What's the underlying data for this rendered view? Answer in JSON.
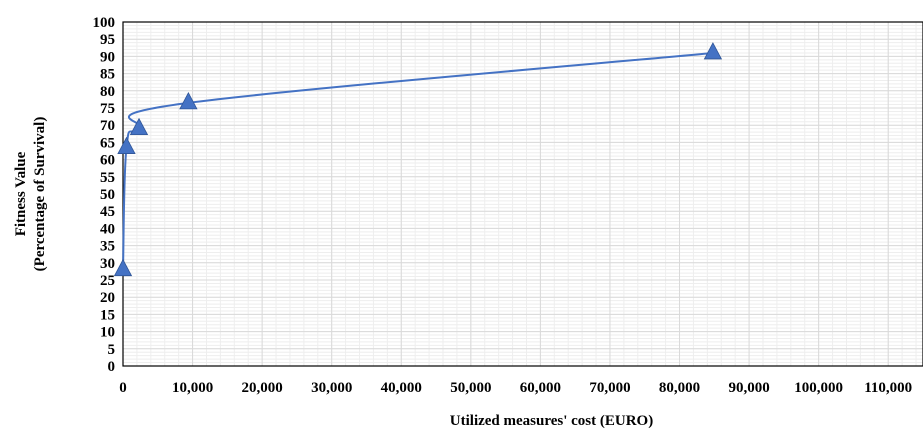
{
  "chart_data": {
    "type": "scatter",
    "title": "",
    "xlabel": "Utilized measures' cost (EURO)",
    "ylabel_line1": "Fitness Value",
    "ylabel_line2": "(Percentage of Survival)",
    "xlim": [
      0,
      115000
    ],
    "ylim": [
      0,
      100
    ],
    "x_ticks": [
      0,
      10000,
      20000,
      30000,
      40000,
      50000,
      60000,
      70000,
      80000,
      90000,
      100000,
      110000
    ],
    "x_tick_labels": [
      "0",
      "10,000",
      "20,000",
      "30,000",
      "40,000",
      "50,000",
      "60,000",
      "70,000",
      "80,000",
      "90,000",
      "100,000",
      "110,000"
    ],
    "y_ticks": [
      0,
      5,
      10,
      15,
      20,
      25,
      30,
      35,
      40,
      45,
      50,
      55,
      60,
      65,
      70,
      75,
      80,
      85,
      90,
      95,
      100
    ],
    "y_tick_labels": [
      "0",
      "5",
      "10",
      "15",
      "20",
      "25",
      "30",
      "35",
      "40",
      "45",
      "50",
      "55",
      "60",
      "65",
      "70",
      "75",
      "80",
      "85",
      "90",
      "95",
      "100"
    ],
    "grid": true,
    "legend": "none",
    "marker": "triangle",
    "line_style": "smooth",
    "color": "#4472c4",
    "series": [
      {
        "x": [
          0,
          500,
          2300,
          9400,
          84800
        ],
        "y": [
          28,
          63.5,
          69,
          76.5,
          91
        ]
      }
    ]
  }
}
